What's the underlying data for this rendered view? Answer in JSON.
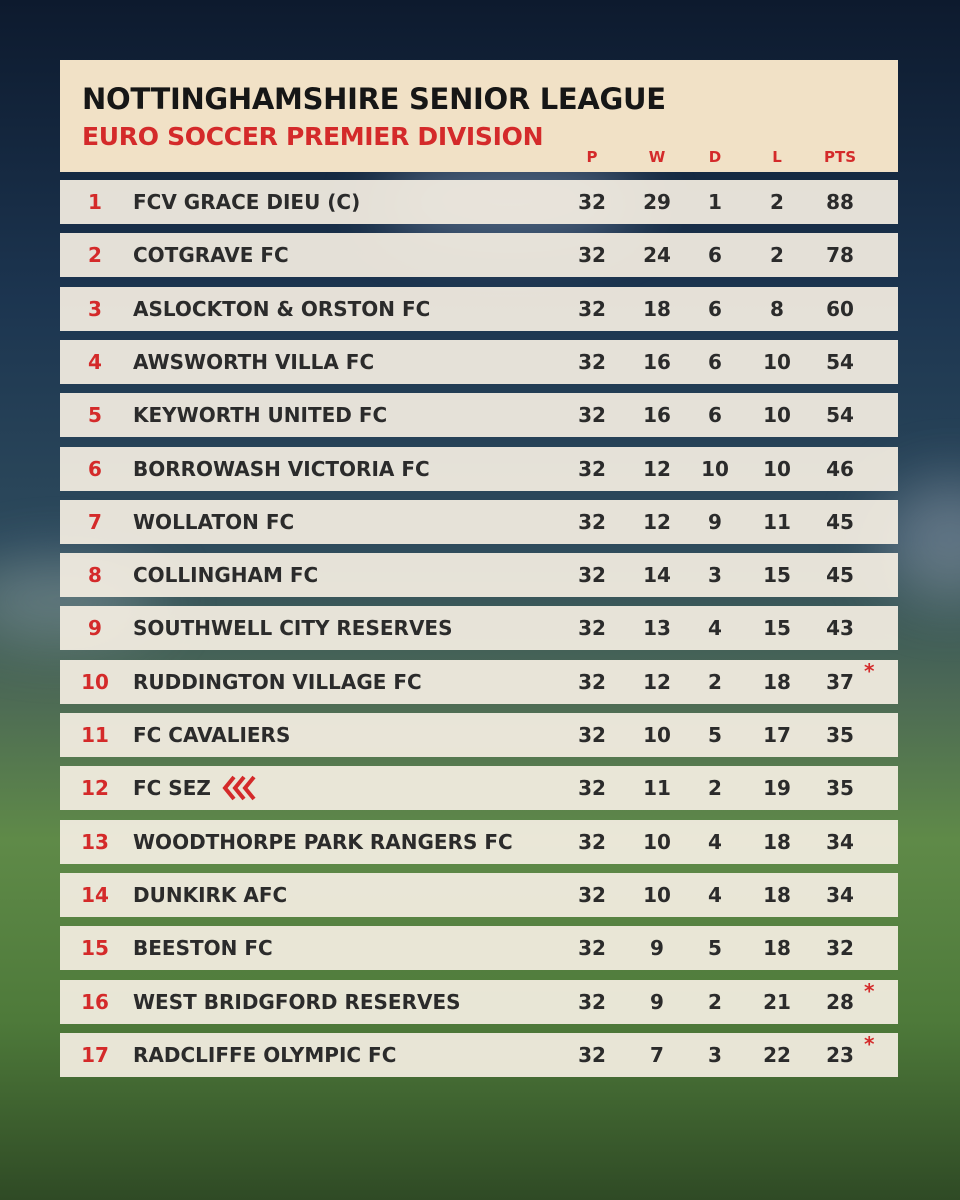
{
  "header": {
    "title": "NOTTINGHAMSHIRE SENIOR LEAGUE",
    "subtitle": "EURO SOCCER PREMIER DIVISION"
  },
  "table": {
    "columns": [
      "P",
      "W",
      "D",
      "L",
      "PTS"
    ],
    "rows": [
      {
        "pos": "1",
        "team": "FCV GRACE DIEU (C)",
        "p": "32",
        "w": "29",
        "d": "1",
        "l": "2",
        "pts": "88"
      },
      {
        "pos": "2",
        "team": "COTGRAVE FC",
        "p": "32",
        "w": "24",
        "d": "6",
        "l": "2",
        "pts": "78"
      },
      {
        "pos": "3",
        "team": "ASLOCKTON & ORSTON FC",
        "p": "32",
        "w": "18",
        "d": "6",
        "l": "8",
        "pts": "60"
      },
      {
        "pos": "4",
        "team": "AWSWORTH VILLA FC",
        "p": "32",
        "w": "16",
        "d": "6",
        "l": "10",
        "pts": "54"
      },
      {
        "pos": "5",
        "team": "KEYWORTH UNITED FC",
        "p": "32",
        "w": "16",
        "d": "6",
        "l": "10",
        "pts": "54"
      },
      {
        "pos": "6",
        "team": "BORROWASH VICTORIA FC",
        "p": "32",
        "w": "12",
        "d": "10",
        "l": "10",
        "pts": "46"
      },
      {
        "pos": "7",
        "team": "WOLLATON FC",
        "p": "32",
        "w": "12",
        "d": "9",
        "l": "11",
        "pts": "45"
      },
      {
        "pos": "8",
        "team": "COLLINGHAM FC",
        "p": "32",
        "w": "14",
        "d": "3",
        "l": "15",
        "pts": "45"
      },
      {
        "pos": "9",
        "team": "SOUTHWELL CITY RESERVES",
        "p": "32",
        "w": "13",
        "d": "4",
        "l": "15",
        "pts": "43"
      },
      {
        "pos": "10",
        "team": "RUDDINGTON VILLAGE FC",
        "p": "32",
        "w": "12",
        "d": "2",
        "l": "18",
        "pts": "37",
        "note": "*"
      },
      {
        "pos": "11",
        "team": "FC CAVALIERS",
        "p": "32",
        "w": "10",
        "d": "5",
        "l": "17",
        "pts": "35"
      },
      {
        "pos": "12",
        "team": "FC SEZ",
        "p": "32",
        "w": "11",
        "d": "2",
        "l": "19",
        "pts": "35"
      },
      {
        "pos": "13",
        "team": "WOODTHORPE PARK RANGERS FC",
        "p": "32",
        "w": "10",
        "d": "4",
        "l": "18",
        "pts": "34"
      },
      {
        "pos": "14",
        "team": "DUNKIRK AFC",
        "p": "32",
        "w": "10",
        "d": "4",
        "l": "18",
        "pts": "34"
      },
      {
        "pos": "15",
        "team": "BEESTON FC",
        "p": "32",
        "w": "9",
        "d": "5",
        "l": "18",
        "pts": "32"
      },
      {
        "pos": "16",
        "team": "WEST BRIDGFORD RESERVES",
        "p": "32",
        "w": "9",
        "d": "2",
        "l": "21",
        "pts": "28",
        "note": "*"
      },
      {
        "pos": "17",
        "team": "RADCLIFFE OLYMPIC FC",
        "p": "32",
        "w": "7",
        "d": "3",
        "l": "22",
        "pts": "23",
        "note": "*"
      }
    ]
  }
}
